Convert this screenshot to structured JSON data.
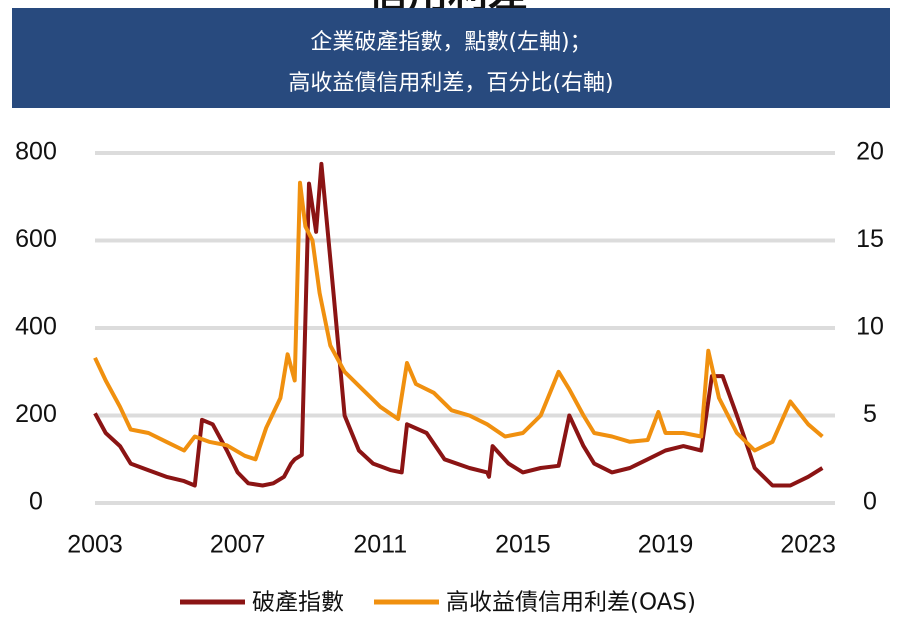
{
  "chart_data": {
    "type": "line",
    "title": "信用利差",
    "subtitle": [
      "企業破產指數，點數(左軸)；",
      "高收益債信用利差，百分比(右軸)"
    ],
    "xlim": [
      2003,
      2023.5
    ],
    "xticks": [
      2003,
      2007,
      2011,
      2015,
      2019,
      2023
    ],
    "ylim": [
      0,
      800
    ],
    "yticks": [
      0,
      200,
      400,
      600,
      800
    ],
    "y2lim": [
      0,
      20
    ],
    "y2ticks": [
      0,
      5,
      10,
      15,
      20
    ],
    "grid": true,
    "legend": "bottom",
    "series": [
      {
        "name": "破產指數",
        "color": "#8b1414",
        "axis": "y",
        "x": [
          2003.0,
          2003.3,
          2003.7,
          2004.0,
          2004.5,
          2005.0,
          2005.5,
          2005.8,
          2006.0,
          2006.3,
          2006.7,
          2007.0,
          2007.3,
          2007.7,
          2008.0,
          2008.3,
          2008.5,
          2008.6,
          2008.8,
          2009.0,
          2009.2,
          2009.35,
          2009.7,
          2010.0,
          2010.4,
          2010.8,
          2011.3,
          2011.6,
          2011.75,
          2012.3,
          2012.8,
          2013.5,
          2014.0,
          2014.05,
          2014.15,
          2014.6,
          2015.0,
          2015.5,
          2016.0,
          2016.3,
          2016.7,
          2017.0,
          2017.5,
          2018.0,
          2018.5,
          2019.0,
          2019.5,
          2020.0,
          2020.3,
          2020.6,
          2021.0,
          2021.5,
          2022.0,
          2022.5,
          2023.0,
          2023.4
        ],
        "values": [
          205,
          160,
          130,
          90,
          75,
          60,
          50,
          40,
          190,
          180,
          120,
          70,
          45,
          40,
          45,
          60,
          90,
          100,
          110,
          730,
          620,
          775,
          470,
          200,
          120,
          90,
          75,
          70,
          180,
          160,
          100,
          80,
          70,
          60,
          130,
          90,
          70,
          80,
          85,
          200,
          130,
          90,
          70,
          80,
          100,
          120,
          130,
          120,
          290,
          290,
          200,
          80,
          40,
          40,
          60,
          80
        ]
      },
      {
        "name": "高收益債信用利差(OAS)",
        "color": "#f0900f",
        "axis": "y2",
        "x": [
          2003.0,
          2003.3,
          2003.7,
          2004.0,
          2004.5,
          2005.0,
          2005.5,
          2005.8,
          2006.2,
          2006.7,
          2007.2,
          2007.5,
          2007.8,
          2008.2,
          2008.4,
          2008.6,
          2008.75,
          2008.9,
          2009.1,
          2009.3,
          2009.6,
          2010.0,
          2010.5,
          2011.0,
          2011.5,
          2011.75,
          2012.0,
          2012.5,
          2013.0,
          2013.5,
          2014.0,
          2014.5,
          2015.0,
          2015.5,
          2016.0,
          2016.3,
          2016.7,
          2017.0,
          2017.5,
          2018.0,
          2018.5,
          2018.8,
          2019.0,
          2019.5,
          2020.0,
          2020.2,
          2020.5,
          2021.0,
          2021.5,
          2022.0,
          2022.5,
          2023.0,
          2023.4
        ],
        "values": [
          8.3,
          7,
          5.5,
          4.2,
          4,
          3.5,
          3,
          3.8,
          3.5,
          3.3,
          2.7,
          2.5,
          4.3,
          6,
          8.5,
          7,
          18.3,
          15.8,
          15,
          12,
          9,
          7.5,
          6.5,
          5.5,
          4.8,
          8,
          6.8,
          6.3,
          5.3,
          5,
          4.5,
          3.8,
          4,
          5,
          7.5,
          6.5,
          5,
          4,
          3.8,
          3.5,
          3.6,
          5.2,
          4,
          4,
          3.8,
          8.7,
          6,
          4,
          3,
          3.5,
          5.8,
          4.5,
          3.8
        ]
      }
    ]
  }
}
